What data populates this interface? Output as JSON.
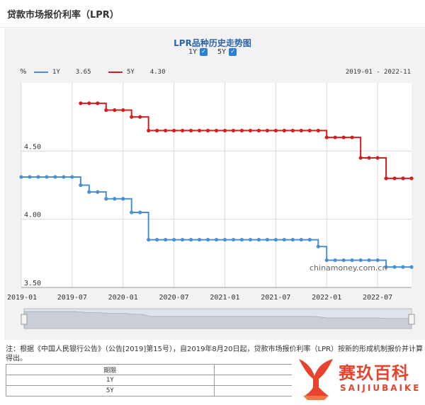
{
  "page": {
    "title": "贷款市场报价利率（LPR）"
  },
  "chart_data": {
    "type": "line",
    "title": "LPR品种历史走势图",
    "unit": "%",
    "toggles": [
      {
        "label": "1Y",
        "checked": true
      },
      {
        "label": "5Y",
        "checked": true
      }
    ],
    "legend": [
      {
        "name": "1Y",
        "value": "3.65",
        "color": "#4a90d0"
      },
      {
        "name": "5Y",
        "value": "4.30",
        "color": "#d11f1f"
      }
    ],
    "date_range": "2019-01 - 2022-11",
    "x_ticks": [
      "2019-01",
      "2019-07",
      "2020-01",
      "2020-07",
      "2021-01",
      "2021-07",
      "2022-01",
      "2022-07"
    ],
    "y_ticks": [
      "3.50",
      "4.00",
      "4.50"
    ],
    "ylim": [
      3.5,
      5.0
    ],
    "grid": true,
    "series": [
      {
        "name": "1Y",
        "color": "#4a90d0",
        "x": [
          "2019-01",
          "2019-02",
          "2019-03",
          "2019-04",
          "2019-05",
          "2019-06",
          "2019-07",
          "2019-08",
          "2019-09",
          "2019-10",
          "2019-11",
          "2019-12",
          "2020-01",
          "2020-02",
          "2020-03",
          "2020-04",
          "2020-05",
          "2020-06",
          "2020-07",
          "2020-08",
          "2020-09",
          "2020-10",
          "2020-11",
          "2020-12",
          "2021-01",
          "2021-02",
          "2021-03",
          "2021-04",
          "2021-05",
          "2021-06",
          "2021-07",
          "2021-08",
          "2021-09",
          "2021-10",
          "2021-11",
          "2021-12",
          "2022-01",
          "2022-02",
          "2022-03",
          "2022-04",
          "2022-05",
          "2022-06",
          "2022-07",
          "2022-08",
          "2022-09",
          "2022-10",
          "2022-11"
        ],
        "values": [
          4.31,
          4.31,
          4.31,
          4.31,
          4.31,
          4.31,
          4.31,
          4.25,
          4.2,
          4.2,
          4.15,
          4.15,
          4.15,
          4.05,
          4.05,
          3.85,
          3.85,
          3.85,
          3.85,
          3.85,
          3.85,
          3.85,
          3.85,
          3.85,
          3.85,
          3.85,
          3.85,
          3.85,
          3.85,
          3.85,
          3.85,
          3.85,
          3.85,
          3.85,
          3.85,
          3.8,
          3.7,
          3.7,
          3.7,
          3.7,
          3.7,
          3.7,
          3.7,
          3.65,
          3.65,
          3.65,
          3.65
        ]
      },
      {
        "name": "5Y",
        "color": "#d11f1f",
        "x": [
          "2019-08",
          "2019-09",
          "2019-10",
          "2019-11",
          "2019-12",
          "2020-01",
          "2020-02",
          "2020-03",
          "2020-04",
          "2020-05",
          "2020-06",
          "2020-07",
          "2020-08",
          "2020-09",
          "2020-10",
          "2020-11",
          "2020-12",
          "2021-01",
          "2021-02",
          "2021-03",
          "2021-04",
          "2021-05",
          "2021-06",
          "2021-07",
          "2021-08",
          "2021-09",
          "2021-10",
          "2021-11",
          "2021-12",
          "2022-01",
          "2022-02",
          "2022-03",
          "2022-04",
          "2022-05",
          "2022-06",
          "2022-07",
          "2022-08",
          "2022-09",
          "2022-10",
          "2022-11"
        ],
        "values": [
          4.85,
          4.85,
          4.85,
          4.8,
          4.8,
          4.8,
          4.75,
          4.75,
          4.65,
          4.65,
          4.65,
          4.65,
          4.65,
          4.65,
          4.65,
          4.65,
          4.65,
          4.65,
          4.65,
          4.65,
          4.65,
          4.65,
          4.65,
          4.65,
          4.65,
          4.65,
          4.65,
          4.65,
          4.65,
          4.6,
          4.6,
          4.6,
          4.6,
          4.45,
          4.45,
          4.45,
          4.3,
          4.3,
          4.3,
          4.3
        ]
      }
    ],
    "annotation": "chinamoney.com.cn"
  },
  "note": "注：根据《中国人民银行公告》（公告[2019]第15号），自2019年8月20日起，贷款市场报价利率（LPR）按新的形成机制报价并计算得出。",
  "table": {
    "header": [
      "期限",
      ""
    ],
    "rows": [
      [
        "1Y",
        ""
      ],
      [
        "5Y",
        ""
      ]
    ]
  },
  "watermark": {
    "cn": "赛玖百科",
    "en": "SAIJIUBAIKE",
    "color": "#e8432c"
  }
}
